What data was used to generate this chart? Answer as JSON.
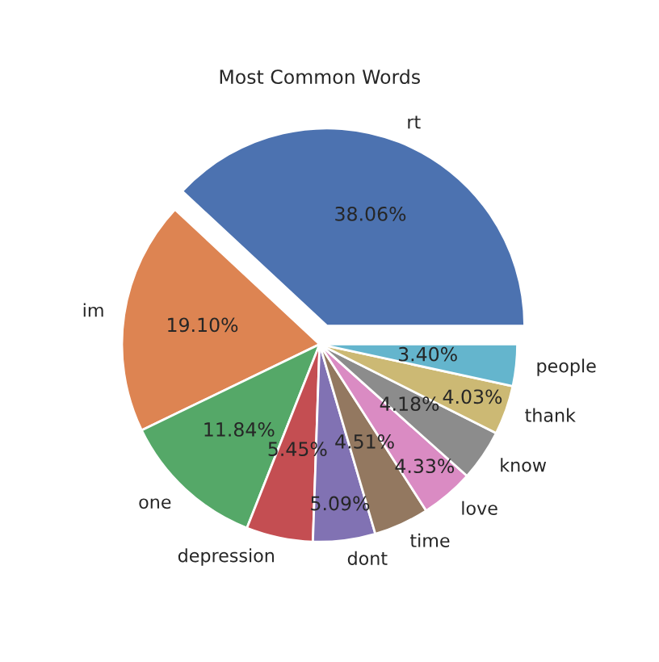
{
  "chart_data": {
    "type": "pie",
    "title": "Most Common Words",
    "categories": [
      "rt",
      "im",
      "one",
      "depression",
      "dont",
      "time",
      "love",
      "know",
      "thank",
      "people"
    ],
    "values": [
      38.06,
      19.1,
      11.84,
      5.45,
      5.09,
      4.51,
      4.33,
      4.18,
      4.03,
      3.4
    ],
    "value_labels": [
      "38.06%",
      "19.10%",
      "11.84%",
      "5.45%",
      "5.09%",
      "4.51%",
      "4.33%",
      "4.18%",
      "4.03%",
      "3.40%"
    ],
    "colors": [
      "#4c72b0",
      "#dd8452",
      "#55a868",
      "#c44e52",
      "#8172b3",
      "#937860",
      "#da8bc3",
      "#8c8c8c",
      "#ccb974",
      "#64b5cd"
    ],
    "legend": false
  }
}
